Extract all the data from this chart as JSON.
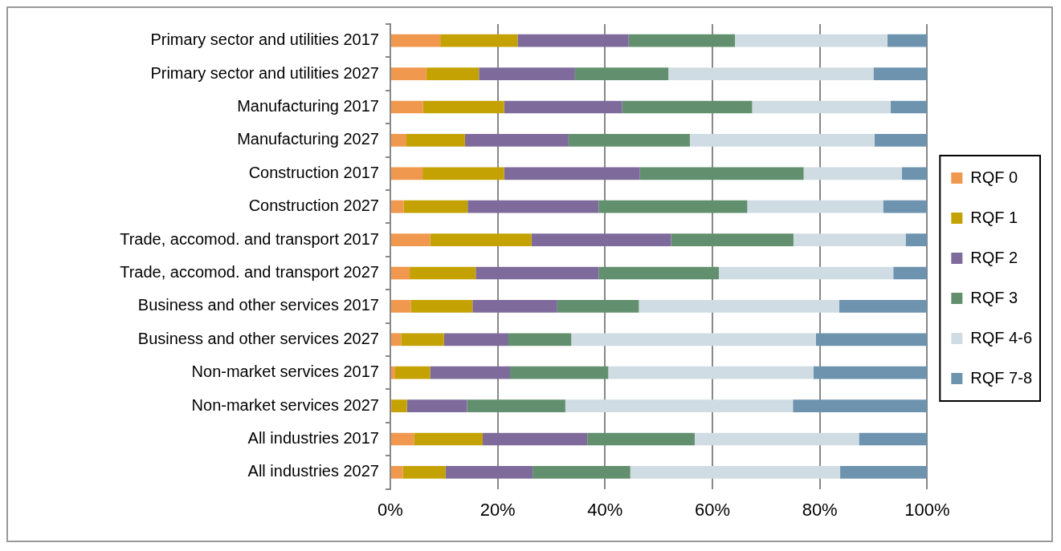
{
  "chart_data": {
    "type": "bar",
    "orientation": "horizontal",
    "stacked": true,
    "categories": [
      "Primary sector and utilities 2017",
      "Primary sector and utilities 2027",
      "Manufacturing 2017",
      "Manufacturing 2027",
      "Construction 2017",
      "Construction 2027",
      "Trade, accomod. and transport 2017",
      "Trade, accomod. and transport 2027",
      "Business and other services 2017",
      "Business and other services 2027",
      "Non-market services 2017",
      "Non-market services 2027",
      "All industries 2017",
      "All industries 2027"
    ],
    "series": [
      {
        "name": "RQF 0",
        "color": "#f0984e",
        "values": [
          9.3,
          6.7,
          6.1,
          3.0,
          6.0,
          2.5,
          7.4,
          3.6,
          3.8,
          2.0,
          0.9,
          0.3,
          4.4,
          2.3
        ]
      },
      {
        "name": "RQF 1",
        "color": "#c4a204",
        "values": [
          14.4,
          9.8,
          15.1,
          10.9,
          15.2,
          11.9,
          18.9,
          12.3,
          11.5,
          8.0,
          6.5,
          2.8,
          12.8,
          8.0
        ]
      },
      {
        "name": "RQF 2",
        "color": "#7e6b9c",
        "values": [
          20.7,
          17.9,
          22.0,
          19.3,
          25.3,
          24.4,
          26.0,
          22.9,
          15.8,
          12.0,
          14.9,
          11.2,
          19.5,
          16.2
        ]
      },
      {
        "name": "RQF 3",
        "color": "#62906e",
        "values": [
          19.8,
          17.4,
          24.2,
          22.6,
          30.5,
          27.7,
          22.8,
          22.4,
          15.2,
          11.7,
          18.3,
          18.3,
          20.0,
          18.2
        ]
      },
      {
        "name": "RQF 4-6",
        "color": "#d0dce3",
        "values": [
          28.4,
          38.2,
          25.8,
          34.4,
          18.3,
          25.3,
          20.9,
          32.5,
          37.3,
          45.6,
          38.2,
          42.4,
          30.6,
          39.1
        ]
      },
      {
        "name": "RQF 7-8",
        "color": "#6d93ae",
        "values": [
          7.4,
          10.0,
          6.8,
          9.8,
          4.7,
          8.2,
          4.0,
          6.3,
          16.4,
          20.7,
          21.2,
          25.0,
          12.7,
          16.2
        ]
      }
    ],
    "xlim": [
      0,
      100
    ],
    "xticks": [
      {
        "value": 0,
        "label": "0%"
      },
      {
        "value": 20,
        "label": "20%"
      },
      {
        "value": 40,
        "label": "40%"
      },
      {
        "value": 60,
        "label": "60%"
      },
      {
        "value": 80,
        "label": "80%"
      },
      {
        "value": 100,
        "label": "100%"
      }
    ],
    "grid": "x",
    "legend": "right"
  }
}
